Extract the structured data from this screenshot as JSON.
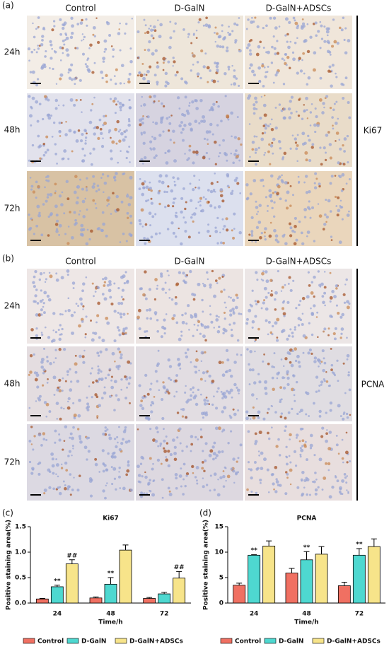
{
  "panels": [
    {
      "label": "(a)",
      "columns": [
        "Control",
        "D-GalN",
        "D-GalN+ADSCs"
      ],
      "rows": [
        "24h",
        "48h",
        "72h"
      ],
      "marker": "Ki67"
    },
    {
      "label": "(b)",
      "columns": [
        "Control",
        "D-GalN",
        "D-GalN+ADSCs"
      ],
      "rows": [
        "24h",
        "48h",
        "72h"
      ],
      "marker": "PCNA"
    }
  ],
  "chart_panels": [
    "(c)",
    "(d)"
  ],
  "chart_data": [
    {
      "type": "bar",
      "title": "Ki67",
      "ylabel": "Positive staining area(%)",
      "xlabel": "Time/h",
      "categories": [
        "24",
        "48",
        "72"
      ],
      "series": [
        {
          "name": "Control",
          "color": "#f07062",
          "values": [
            0.08,
            0.1,
            0.09
          ],
          "errors": [
            0.01,
            0.02,
            0.02
          ],
          "value_annotations": [
            null,
            null,
            null
          ]
        },
        {
          "name": "D-GalN",
          "color": "#4ed8d0",
          "values": [
            0.32,
            0.37,
            0.18
          ],
          "errors": [
            0.03,
            0.13,
            0.03
          ],
          "value_annotations": [
            "**",
            "**",
            null
          ]
        },
        {
          "name": "D-GalN+ADSCs",
          "color": "#f7e48a",
          "values": [
            0.77,
            1.04,
            0.49
          ],
          "errors": [
            0.08,
            0.1,
            0.13
          ],
          "value_annotations": [
            "##",
            null,
            "##"
          ]
        }
      ],
      "ylim": [
        0,
        1.5
      ],
      "yticks": [
        {
          "value": 0,
          "label": "0.0"
        },
        0.5,
        {
          "value": 1,
          "label": "1.0"
        },
        1.5
      ]
    },
    {
      "type": "bar",
      "title": "PCNA",
      "ylabel": "Positive staining area(%)",
      "xlabel": "Time/h",
      "categories": [
        "24",
        "48",
        "72"
      ],
      "series": [
        {
          "name": "Control",
          "color": "#f07062",
          "values": [
            3.5,
            5.9,
            3.4
          ],
          "errors": [
            0.4,
            0.9,
            0.7
          ],
          "value_annotations": [
            null,
            null,
            null
          ]
        },
        {
          "name": "D-GalN",
          "color": "#4ed8d0",
          "values": [
            9.4,
            8.5,
            9.4
          ],
          "errors": [
            0.1,
            1.6,
            1.3
          ],
          "value_annotations": [
            "**",
            "**",
            "**"
          ]
        },
        {
          "name": "D-GalN+ADSCs",
          "color": "#f7e48a",
          "values": [
            11.2,
            9.6,
            11.1
          ],
          "errors": [
            1.0,
            1.5,
            1.5
          ],
          "value_annotations": [
            null,
            null,
            null
          ]
        }
      ],
      "ylim": [
        0,
        15
      ],
      "yticks": [
        0,
        5,
        10,
        15
      ]
    }
  ]
}
